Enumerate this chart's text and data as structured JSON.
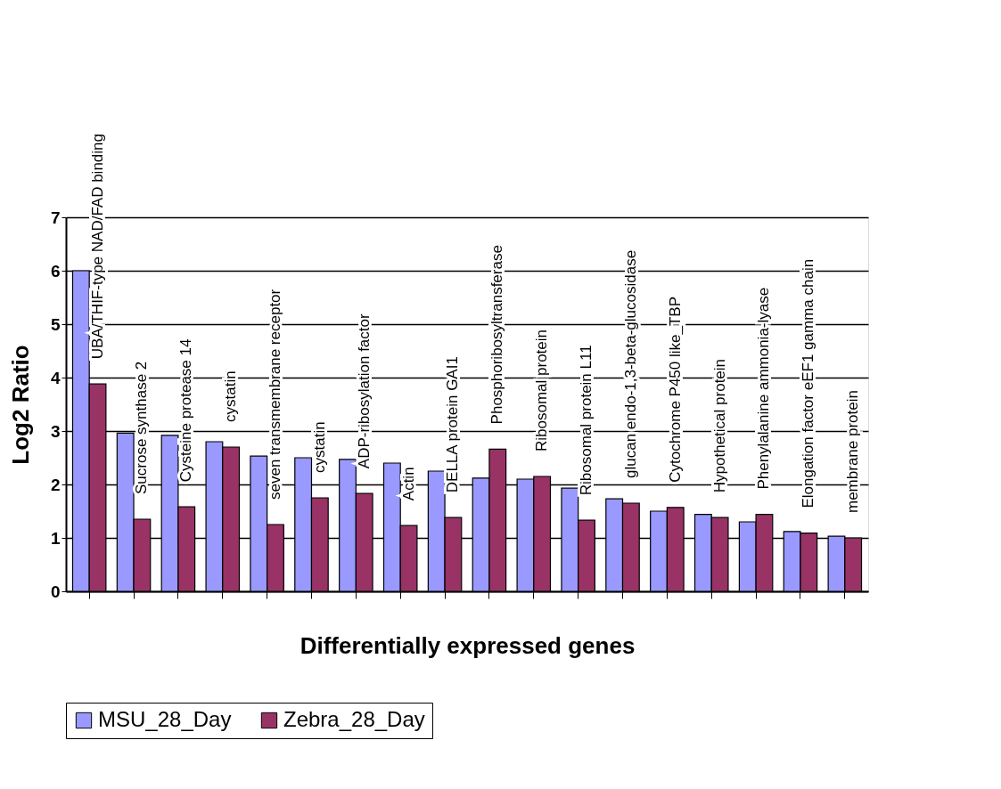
{
  "chart_data": {
    "type": "bar",
    "xlabel": "Differentially expressed genes",
    "ylabel": "Log2 Ratio",
    "categories": [
      "UBA/THIF-type NAD/FAD binding",
      "Sucrose synthase 2",
      "Cysteine protease 14",
      "cystatin",
      "seven transmembrane receptor",
      "cystatin",
      "ADP-ribosylation factor",
      "Actin",
      "DELLA protein GAI1",
      "Phosphoribosyltransferase",
      "Ribosomal protein",
      "Ribosomal protein L11",
      "glucan endo-1,3-beta-glucosidase",
      "Cytochrome P450 like_TBP",
      "Hypothetical protein",
      "Phenylalanine ammonia-lyase",
      "Elongation factor eEF1 gamma chain",
      "membrane protein"
    ],
    "series": [
      {
        "name": "MSU_28_Day",
        "color": "#9999ff",
        "values": [
          6.0,
          2.96,
          2.92,
          2.8,
          2.53,
          2.5,
          2.47,
          2.4,
          2.25,
          2.12,
          2.1,
          1.93,
          1.73,
          1.5,
          1.44,
          1.3,
          1.12,
          1.03
        ]
      },
      {
        "name": "Zebra_28_Day",
        "color": "#993366",
        "values": [
          3.88,
          1.35,
          1.58,
          2.7,
          1.25,
          1.75,
          1.83,
          1.23,
          1.38,
          2.66,
          2.15,
          1.33,
          1.65,
          1.57,
          1.38,
          1.44,
          1.09,
          1.0
        ]
      }
    ],
    "ylim": [
      0,
      7
    ],
    "yticks": [
      0,
      1,
      2,
      3,
      4,
      5,
      6,
      7
    ],
    "grid": "y",
    "legend": "bottom"
  }
}
